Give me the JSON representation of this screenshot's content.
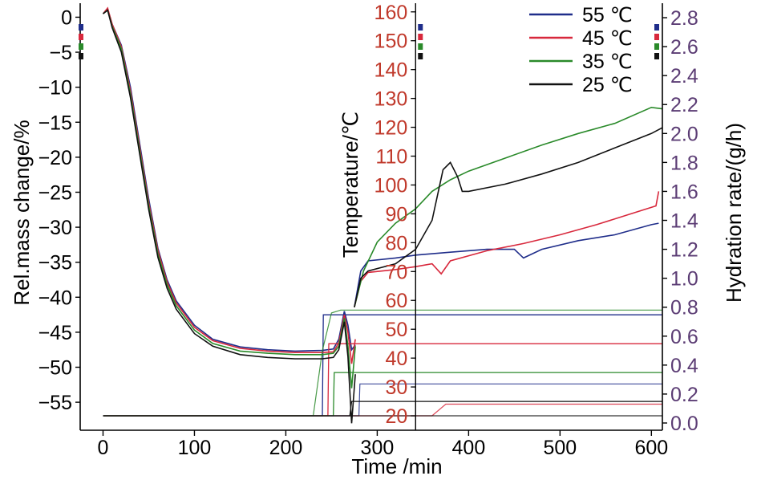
{
  "chart_data": {
    "type": "line",
    "title": "",
    "xlabel": "Time /min",
    "ylabel_left": "Rel.mass change/%",
    "ylabel_temperature": "Temperature/℃",
    "ylabel_right": "Hydration rate/(g/h)",
    "xlim": [
      -25,
      612
    ],
    "ylim_left": [
      -59,
      2
    ],
    "ylim_temperature": [
      15,
      163
    ],
    "ylim_right": [
      -0.05,
      2.9
    ],
    "x_ticks": [
      "0",
      "100",
      "200",
      "300",
      "400",
      "500",
      "600"
    ],
    "y_left_ticks": [
      "0",
      "−5",
      "−10",
      "−15",
      "−20",
      "−25",
      "−30",
      "−35",
      "−40",
      "−45",
      "−50",
      "−55"
    ],
    "y_temperature_ticks": [
      "20",
      "30",
      "40",
      "50",
      "60",
      "70",
      "80",
      "90",
      "100",
      "110",
      "120",
      "130",
      "140",
      "150",
      "160"
    ],
    "y_right_ticks": [
      "0.0",
      "0.2",
      "0.4",
      "0.6",
      "0.8",
      "1.0",
      "1.2",
      "1.4",
      "1.6",
      "1.8",
      "2.0",
      "2.2",
      "2.4",
      "2.6",
      "2.8"
    ],
    "temperature_axis_x": 342,
    "legend_position": "top-right",
    "colors": {
      "text": "#000000",
      "temperature_axis": "#c0392b",
      "hydration_axis": "#5b3c74"
    },
    "series": [
      {
        "name": "55 ℃",
        "color": "#1f2d8a",
        "mass": [
          [
            0,
            0.5
          ],
          [
            5,
            1.2
          ],
          [
            10,
            -1
          ],
          [
            20,
            -4
          ],
          [
            30,
            -10
          ],
          [
            40,
            -18
          ],
          [
            50,
            -26
          ],
          [
            60,
            -33
          ],
          [
            70,
            -37.5
          ],
          [
            80,
            -40.5
          ],
          [
            100,
            -44
          ],
          [
            120,
            -46
          ],
          [
            150,
            -47.1
          ],
          [
            180,
            -47.5
          ],
          [
            210,
            -47.7
          ],
          [
            240,
            -47.6
          ],
          [
            252,
            -47.4
          ],
          [
            258,
            -46
          ],
          [
            264,
            -42
          ],
          [
            268,
            -44
          ],
          [
            272,
            -47.5
          ],
          [
            276,
            -46.8
          ]
        ],
        "temperature": [
          [
            0,
            20
          ],
          [
            240,
            20
          ],
          [
            241,
            55
          ],
          [
            612,
            55
          ]
        ],
        "hydration": [
          [
            0,
            0.05
          ],
          [
            280,
            0.05
          ],
          [
            281,
            0.27
          ],
          [
            612,
            0.27
          ]
        ],
        "hydration_rate": [
          [
            275,
            0.8
          ],
          [
            282,
            1.05
          ],
          [
            290,
            1.12
          ],
          [
            320,
            1.14
          ],
          [
            342,
            1.16
          ],
          [
            380,
            1.18
          ],
          [
            420,
            1.2
          ],
          [
            450,
            1.2
          ],
          [
            460,
            1.14
          ],
          [
            480,
            1.2
          ],
          [
            520,
            1.26
          ],
          [
            560,
            1.3
          ],
          [
            600,
            1.37
          ],
          [
            608,
            1.38
          ]
        ]
      },
      {
        "name": "45 ℃",
        "color": "#d8283c",
        "mass": [
          [
            0,
            0.5
          ],
          [
            5,
            1.3
          ],
          [
            10,
            -1
          ],
          [
            20,
            -4.2
          ],
          [
            30,
            -10.5
          ],
          [
            40,
            -18.5
          ],
          [
            50,
            -26.5
          ],
          [
            60,
            -33.3
          ],
          [
            70,
            -37.8
          ],
          [
            80,
            -40.8
          ],
          [
            100,
            -44.3
          ],
          [
            120,
            -46.2
          ],
          [
            150,
            -47.3
          ],
          [
            180,
            -47.7
          ],
          [
            210,
            -47.9
          ],
          [
            240,
            -47.9
          ],
          [
            252,
            -47.8
          ],
          [
            258,
            -46.5
          ],
          [
            264,
            -42.5
          ],
          [
            268,
            -45
          ],
          [
            272,
            -49.5
          ],
          [
            276,
            -46
          ]
        ],
        "temperature": [
          [
            0,
            20
          ],
          [
            246,
            20
          ],
          [
            247,
            45
          ],
          [
            612,
            45
          ]
        ],
        "hydration": [
          [
            0,
            0.05
          ],
          [
            340,
            0.05
          ],
          [
            360,
            0.05
          ],
          [
            375,
            0.13
          ],
          [
            400,
            0.13
          ],
          [
            612,
            0.13
          ]
        ],
        "hydration_rate": [
          [
            275,
            0.8
          ],
          [
            282,
            0.98
          ],
          [
            290,
            1.04
          ],
          [
            320,
            1.06
          ],
          [
            342,
            1.08
          ],
          [
            360,
            1.1
          ],
          [
            370,
            1.03
          ],
          [
            380,
            1.12
          ],
          [
            420,
            1.19
          ],
          [
            460,
            1.24
          ],
          [
            500,
            1.3
          ],
          [
            540,
            1.37
          ],
          [
            580,
            1.45
          ],
          [
            605,
            1.5
          ],
          [
            608,
            1.6
          ]
        ]
      },
      {
        "name": "35 ℃",
        "color": "#2a8a2a",
        "mass": [
          [
            0,
            0.5
          ],
          [
            5,
            1
          ],
          [
            10,
            -1.3
          ],
          [
            20,
            -4.5
          ],
          [
            30,
            -11
          ],
          [
            40,
            -19
          ],
          [
            50,
            -27
          ],
          [
            60,
            -33.8
          ],
          [
            70,
            -38.2
          ],
          [
            80,
            -41.2
          ],
          [
            100,
            -44.7
          ],
          [
            120,
            -46.6
          ],
          [
            150,
            -47.7
          ],
          [
            180,
            -48
          ],
          [
            210,
            -48.2
          ],
          [
            240,
            -48.2
          ],
          [
            252,
            -48
          ],
          [
            258,
            -47
          ],
          [
            264,
            -43
          ],
          [
            268,
            -47
          ],
          [
            272,
            -53
          ],
          [
            276,
            -47
          ]
        ],
        "temperature": [
          [
            0,
            20
          ],
          [
            252,
            20
          ],
          [
            253,
            35
          ],
          [
            612,
            35
          ]
        ],
        "hydration": [
          [
            0,
            0.05
          ],
          [
            230,
            0.05
          ],
          [
            240,
            0.5
          ],
          [
            250,
            0.76
          ],
          [
            260,
            0.78
          ],
          [
            612,
            0.78
          ]
        ],
        "hydration_rate": [
          [
            275,
            0.8
          ],
          [
            285,
            1.05
          ],
          [
            300,
            1.25
          ],
          [
            320,
            1.38
          ],
          [
            342,
            1.48
          ],
          [
            360,
            1.6
          ],
          [
            380,
            1.68
          ],
          [
            400,
            1.74
          ],
          [
            440,
            1.83
          ],
          [
            480,
            1.92
          ],
          [
            520,
            2
          ],
          [
            560,
            2.07
          ],
          [
            600,
            2.18
          ],
          [
            612,
            2.17
          ]
        ]
      },
      {
        "name": "25 ℃",
        "color": "#111111",
        "mass": [
          [
            0,
            0.5
          ],
          [
            5,
            1
          ],
          [
            10,
            -1.5
          ],
          [
            20,
            -5
          ],
          [
            30,
            -11.5
          ],
          [
            40,
            -19.5
          ],
          [
            50,
            -27.5
          ],
          [
            60,
            -34.3
          ],
          [
            70,
            -38.7
          ],
          [
            80,
            -41.7
          ],
          [
            100,
            -45.2
          ],
          [
            120,
            -47
          ],
          [
            150,
            -48.2
          ],
          [
            180,
            -48.6
          ],
          [
            210,
            -48.8
          ],
          [
            240,
            -48.8
          ],
          [
            252,
            -48.6
          ],
          [
            258,
            -47.5
          ],
          [
            264,
            -43.5
          ],
          [
            268,
            -48.5
          ],
          [
            272,
            -58
          ],
          [
            276,
            -51
          ]
        ],
        "temperature": [
          [
            0,
            20
          ],
          [
            270,
            20
          ],
          [
            272,
            25
          ],
          [
            612,
            25
          ]
        ],
        "hydration": [
          [
            0,
            0.05
          ],
          [
            230,
            0.05
          ],
          [
            612,
            0.05
          ]
        ],
        "hydration_rate": [
          [
            275,
            0.8
          ],
          [
            282,
            1.0
          ],
          [
            290,
            1.05
          ],
          [
            320,
            1.1
          ],
          [
            342,
            1.2
          ],
          [
            360,
            1.4
          ],
          [
            372,
            1.75
          ],
          [
            380,
            1.8
          ],
          [
            388,
            1.7
          ],
          [
            393,
            1.6
          ],
          [
            400,
            1.6
          ],
          [
            440,
            1.65
          ],
          [
            480,
            1.72
          ],
          [
            520,
            1.8
          ],
          [
            560,
            1.9
          ],
          [
            600,
            2.0
          ],
          [
            612,
            2.04
          ]
        ]
      }
    ]
  }
}
